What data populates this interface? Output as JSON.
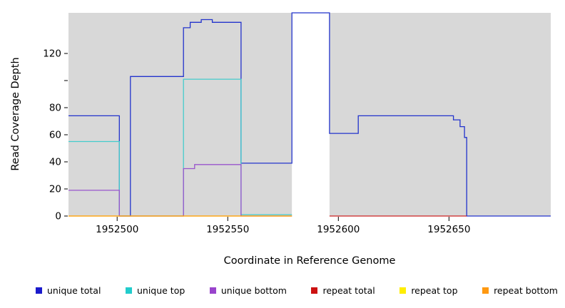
{
  "chart_data": {
    "type": "line",
    "style": "step-coverage-plot",
    "title": "",
    "xlabel": "Coordinate in Reference Genome",
    "ylabel": "Read Coverage Depth",
    "xlim": [
      1952478,
      1952696
    ],
    "ylim": [
      0,
      150
    ],
    "plot_bg": "#d8d8d8",
    "figure_bg": "#ffffff",
    "grid": false,
    "legend_position": "bottom",
    "gap_region": {
      "x_start": 1952579,
      "x_end": 1952596
    },
    "x_ticks": [
      {
        "v": 1952500,
        "label": "1952500"
      },
      {
        "v": 1952550,
        "label": "1952550"
      },
      {
        "v": 1952600,
        "label": "1952600"
      },
      {
        "v": 1952650,
        "label": "1952650"
      }
    ],
    "y_ticks": [
      {
        "v": 0,
        "label": "0"
      },
      {
        "v": 20,
        "label": "20"
      },
      {
        "v": 40,
        "label": "40"
      },
      {
        "v": 60,
        "label": "60"
      },
      {
        "v": 80,
        "label": "80"
      },
      {
        "v": 100,
        "label": ""
      },
      {
        "v": 120,
        "label": "120"
      }
    ],
    "series": [
      {
        "id": "unique-total",
        "name": "unique total",
        "color": "#2233cc",
        "points": [
          [
            1952478,
            74
          ],
          [
            1952501,
            74
          ],
          [
            1952501,
            0
          ],
          [
            1952506,
            0
          ],
          [
            1952506,
            103
          ],
          [
            1952530,
            103
          ],
          [
            1952530,
            139
          ],
          [
            1952533,
            139
          ],
          [
            1952533,
            143
          ],
          [
            1952538,
            143
          ],
          [
            1952538,
            145
          ],
          [
            1952543,
            145
          ],
          [
            1952543,
            143
          ],
          [
            1952556,
            143
          ],
          [
            1952556,
            39
          ],
          [
            1952579,
            39
          ],
          [
            1952579,
            150
          ],
          [
            1952596,
            150
          ],
          [
            1952596,
            61
          ],
          [
            1952609,
            61
          ],
          [
            1952609,
            74
          ],
          [
            1952652,
            74
          ],
          [
            1952652,
            71
          ],
          [
            1952655,
            71
          ],
          [
            1952655,
            66
          ],
          [
            1952657,
            66
          ],
          [
            1952657,
            58
          ],
          [
            1952658,
            58
          ],
          [
            1952658,
            0
          ],
          [
            1952696,
            0
          ]
        ]
      },
      {
        "id": "unique-top",
        "name": "unique top",
        "color": "#44cccc",
        "points": [
          [
            1952478,
            55
          ],
          [
            1952501,
            55
          ],
          [
            1952501,
            0
          ],
          [
            1952530,
            0
          ],
          [
            1952530,
            101
          ],
          [
            1952556,
            101
          ],
          [
            1952556,
            1
          ],
          [
            1952579,
            1
          ]
        ]
      },
      {
        "id": "unique-bottom",
        "name": "unique bottom",
        "color": "#9955cc",
        "points": [
          [
            1952478,
            19
          ],
          [
            1952501,
            19
          ],
          [
            1952501,
            0
          ],
          [
            1952530,
            0
          ],
          [
            1952530,
            35
          ],
          [
            1952535,
            35
          ],
          [
            1952535,
            38
          ],
          [
            1952556,
            38
          ],
          [
            1952556,
            0
          ],
          [
            1952579,
            0
          ]
        ]
      },
      {
        "id": "repeat-total",
        "name": "repeat total",
        "color": "#cc2222",
        "points": [
          [
            1952596,
            0
          ],
          [
            1952658,
            0
          ]
        ]
      },
      {
        "id": "repeat-top",
        "name": "repeat top",
        "color": "#ffee00",
        "points": [
          [
            1952478,
            0
          ],
          [
            1952579,
            0
          ]
        ]
      },
      {
        "id": "repeat-bottom",
        "name": "repeat bottom",
        "color": "#ff9911",
        "points": [
          [
            1952478,
            0
          ],
          [
            1952579,
            0
          ]
        ]
      }
    ],
    "legend": [
      {
        "label": "unique total",
        "color": "#1a1acc"
      },
      {
        "label": "unique top",
        "color": "#22cccc"
      },
      {
        "label": "unique bottom",
        "color": "#9944cc"
      },
      {
        "label": "repeat total",
        "color": "#cc1111"
      },
      {
        "label": "repeat top",
        "color": "#ffee00"
      },
      {
        "label": "repeat bottom",
        "color": "#ff9911"
      }
    ]
  }
}
